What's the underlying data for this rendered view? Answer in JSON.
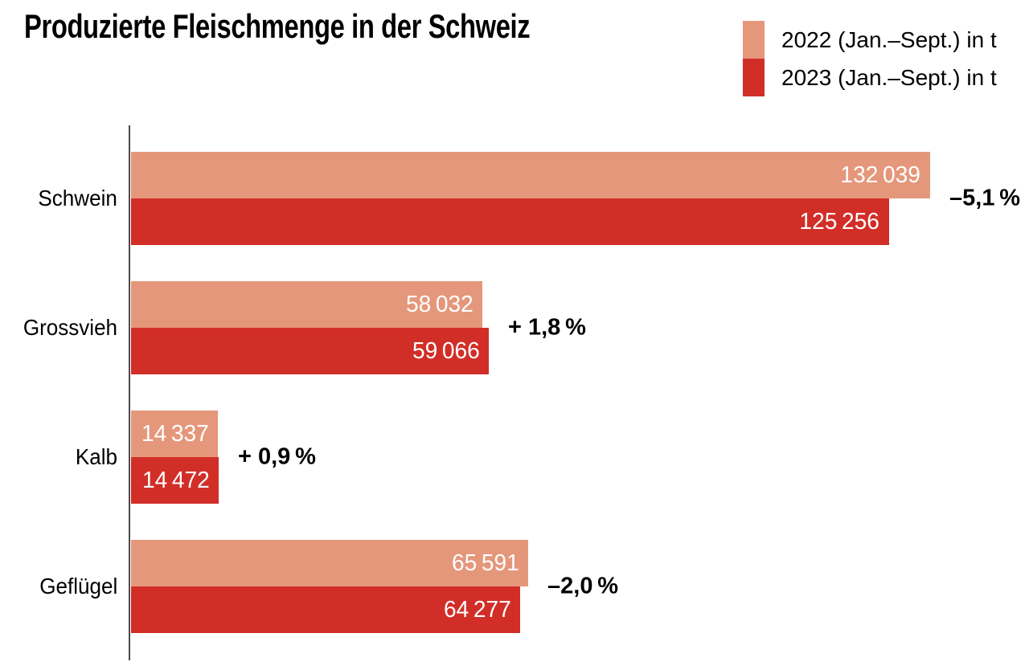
{
  "title": "Produzierte Fleischmenge in der Schweiz",
  "legend": {
    "items": [
      {
        "label": "2022 (Jan.–Sept.) in t",
        "color": "#E5977B"
      },
      {
        "label": "2023 (Jan.–Sept.) in t",
        "color": "#D22E28"
      }
    ]
  },
  "chart_data": {
    "type": "bar",
    "orientation": "horizontal",
    "title": "Produzierte Fleischmenge in der Schweiz",
    "unit": "t",
    "categories": [
      "Schwein",
      "Grossvieh",
      "Kalb",
      "Geflügel"
    ],
    "series": [
      {
        "name": "2022 (Jan.–Sept.) in t",
        "color": "#E5977B",
        "values": [
          132039,
          58032,
          14337,
          65591
        ],
        "value_labels": [
          "132 039",
          "58 032",
          "14 337",
          "65 591"
        ]
      },
      {
        "name": "2023 (Jan.–Sept.) in t",
        "color": "#D22E28",
        "values": [
          125256,
          59066,
          14472,
          64277
        ],
        "value_labels": [
          "125 256",
          "59 066",
          "14 472",
          "64 277"
        ]
      }
    ],
    "change_labels": [
      "–5,1 %",
      "+ 1,8 %",
      "+ 0,9 %",
      "–2,0 %"
    ],
    "xlim": [
      0,
      132039
    ],
    "grid": false,
    "legend_position": "top-right",
    "value_label_color": "#ffffff",
    "axis_color": "#4a4a4a",
    "text_color": "#000000"
  }
}
